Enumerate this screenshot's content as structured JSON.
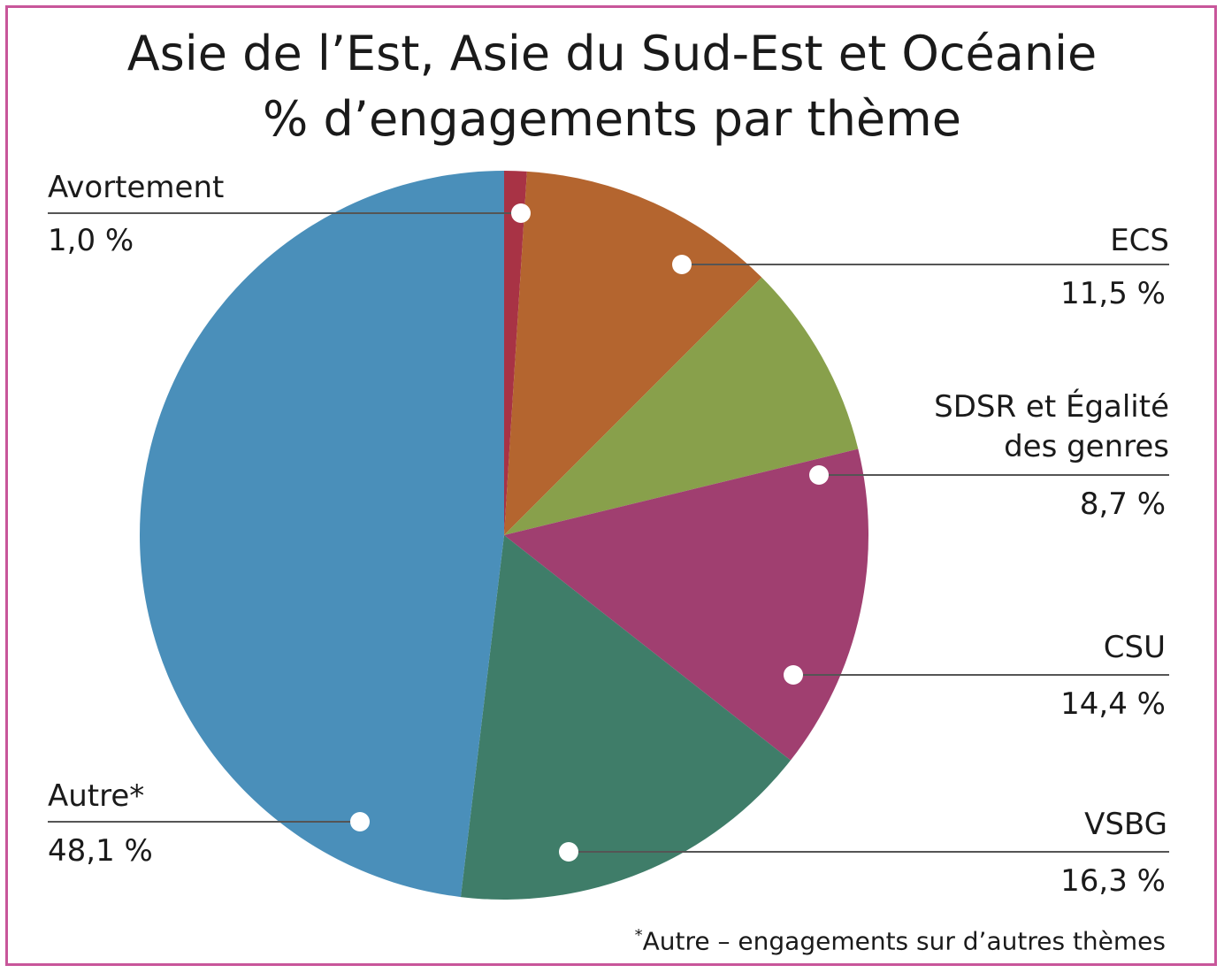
{
  "chart_data": {
    "type": "pie",
    "title": "Asie de l’Est, Asie du Sud-Est et Océanie",
    "subtitle": "% d’engagements par thème",
    "slices": [
      {
        "label": "Avortement",
        "value": 1.0,
        "value_label": "1,0 %",
        "color": "#a83345"
      },
      {
        "label": "ECS",
        "value": 11.5,
        "value_label": "11,5 %",
        "color": "#b4652f"
      },
      {
        "label": "SDSR et Égalité des genres",
        "label_line1": "SDSR et Égalité",
        "label_line2": "des genres",
        "value": 8.7,
        "value_label": "8,7 %",
        "color": "#88a04b"
      },
      {
        "label": "CSU",
        "value": 14.4,
        "value_label": "14,4 %",
        "color": "#a03f70"
      },
      {
        "label": "VSBG",
        "value": 16.3,
        "value_label": "16,3 %",
        "color": "#3f7d69"
      },
      {
        "label": "Autre*",
        "value": 48.1,
        "value_label": "48,1 %",
        "color": "#4a8fba"
      }
    ],
    "footnote_mark": "*",
    "footnote": "Autre – engagements sur d’autres thèmes"
  },
  "colors": {
    "frame": "#c8569a",
    "leader": "#555555",
    "dot": "#ffffff"
  }
}
